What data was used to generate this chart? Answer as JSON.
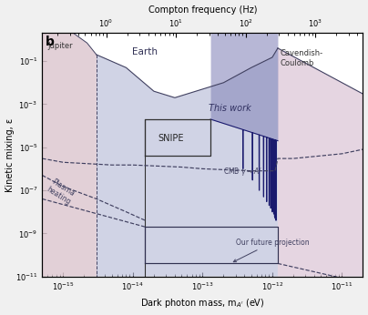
{
  "xlabel": "Dark photon mass, m$_{A'}$ (eV)",
  "ylabel": "Kinetic mixing, ε",
  "top_xlabel": "Compton frequency (Hz)",
  "xlim_mass": [
    5e-16,
    2e-11
  ],
  "ylim": [
    1e-11,
    2.0
  ],
  "mass_to_freq": 241800000000000.0,
  "bg_color": "#f0f0f0",
  "plot_bg": "#ffffff",
  "jupiter_color": "#ddc8d0",
  "earth_color": "#b8bcd8",
  "cavendish_color": "#ddc8d8",
  "this_work_color": "#8888bb",
  "line_color": "#404060",
  "spike_color": "#1a1a6e",
  "panel_label": "b"
}
